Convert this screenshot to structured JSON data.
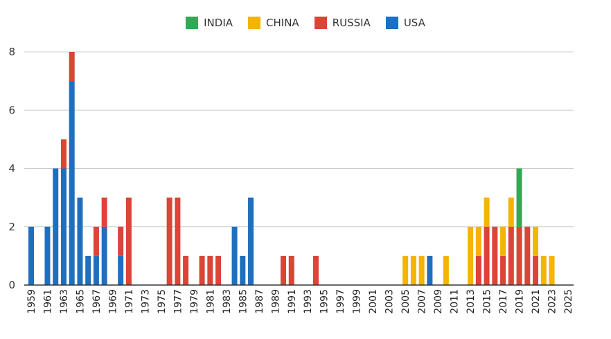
{
  "chart_data": {
    "type": "bar",
    "stacked": true,
    "title": "",
    "xlabel": "",
    "ylabel": "",
    "ylim": [
      0,
      8
    ],
    "yticks": [
      0,
      2,
      4,
      6,
      8
    ],
    "grid": true,
    "legend_position": "top",
    "x_start": 1959,
    "x_end": 2025,
    "x_tick_step": 2,
    "series": [
      {
        "name": "USA",
        "color": "#1f6fbf",
        "values": {
          "1959": 2,
          "1961": 2,
          "1962": 4,
          "1963": 4,
          "1964": 7,
          "1965": 3,
          "1966": 1,
          "1967": 1,
          "1968": 2,
          "1970": 1,
          "1984": 2,
          "1985": 1,
          "1986": 3,
          "2008": 1
        }
      },
      {
        "name": "RUSSIA",
        "color": "#db4437",
        "values": {
          "1963": 1,
          "1964": 1,
          "1967": 1,
          "1968": 1,
          "1970": 1,
          "1971": 3,
          "1976": 3,
          "1977": 3,
          "1978": 1,
          "1980": 1,
          "1981": 1,
          "1982": 1,
          "1990": 1,
          "1991": 1,
          "1994": 1,
          "2014": 1,
          "2015": 2,
          "2016": 2,
          "2017": 1,
          "2018": 2,
          "2019": 2,
          "2020": 2,
          "2021": 1
        }
      },
      {
        "name": "CHINA",
        "color": "#f4b400",
        "values": {
          "2005": 1,
          "2006": 1,
          "2007": 1,
          "2010": 1,
          "2013": 2,
          "2014": 1,
          "2015": 1,
          "2017": 1,
          "2018": 1,
          "2021": 1,
          "2022": 1,
          "2023": 1
        }
      },
      {
        "name": "INDIA",
        "color": "#34a853",
        "values": {
          "2019": 2
        }
      }
    ],
    "legend_order": [
      "INDIA",
      "CHINA",
      "RUSSIA",
      "USA"
    ]
  }
}
